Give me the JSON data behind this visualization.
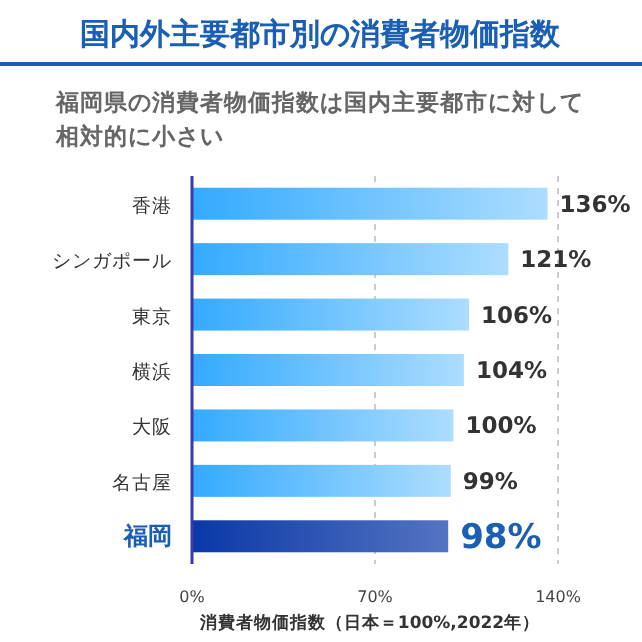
{
  "chart_data": {
    "type": "bar",
    "orientation": "horizontal",
    "title": "国内外主要都市別の消費者物価指数",
    "subtitle": "福岡県の消費者物価指数は国内主要都市に対して相対的に小さい",
    "xlabel": "消費者物価指数（日本＝100%,2022年）",
    "categories": [
      "香港",
      "シンガポール",
      "東京",
      "横浜",
      "大阪",
      "名古屋",
      "福岡"
    ],
    "values": [
      136,
      121,
      106,
      104,
      100,
      99,
      98
    ],
    "value_labels": [
      "136%",
      "121%",
      "106%",
      "104%",
      "100%",
      "99%",
      "98%"
    ],
    "colors": [
      "#33aaff",
      "#33aaff",
      "#33aaff",
      "#33aaff",
      "#33aaff",
      "#33aaff",
      "#0a38a8"
    ],
    "xlim": [
      0,
      140
    ],
    "xticks": [
      {
        "value": 0,
        "label": "0%"
      },
      {
        "value": 70,
        "label": "70%"
      },
      {
        "value": 140,
        "label": "140%"
      }
    ],
    "grid": "x"
  }
}
